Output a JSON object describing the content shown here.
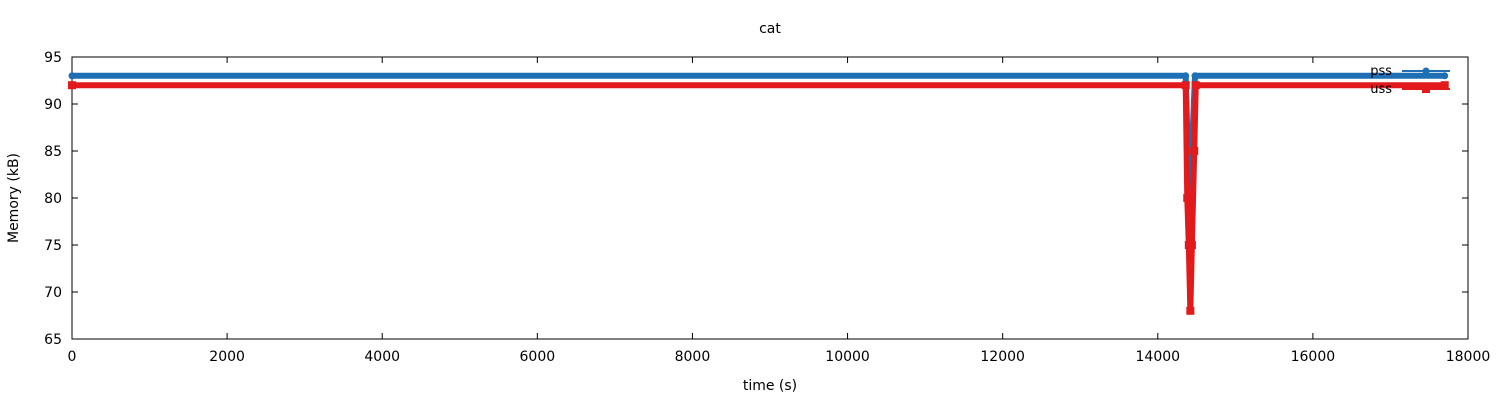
{
  "chart_data": {
    "type": "line",
    "title": "cat",
    "xlabel": "time (s)",
    "ylabel": "Memory (kB)",
    "xlim": [
      0,
      18000
    ],
    "ylim": [
      65,
      95
    ],
    "xticks": [
      0,
      2000,
      4000,
      6000,
      8000,
      10000,
      12000,
      14000,
      16000,
      18000
    ],
    "yticks": [
      65,
      70,
      75,
      80,
      85,
      90,
      95
    ],
    "grid": false,
    "legend_position": "top-right",
    "series": [
      {
        "name": "pss",
        "color": "#1f6fb4",
        "marker": "circle",
        "points": [
          [
            0,
            93
          ],
          [
            14360,
            93
          ],
          [
            14380,
            87
          ],
          [
            14410,
            81
          ],
          [
            14450,
            87
          ],
          [
            14480,
            93
          ],
          [
            17700,
            93
          ]
        ]
      },
      {
        "name": "uss",
        "color": "#e31a1c",
        "marker": "square",
        "points": [
          [
            0,
            92
          ],
          [
            14360,
            92
          ],
          [
            14380,
            80
          ],
          [
            14400,
            75
          ],
          [
            14420,
            68
          ],
          [
            14440,
            75
          ],
          [
            14470,
            85
          ],
          [
            14490,
            92
          ],
          [
            17700,
            92
          ]
        ]
      }
    ]
  }
}
